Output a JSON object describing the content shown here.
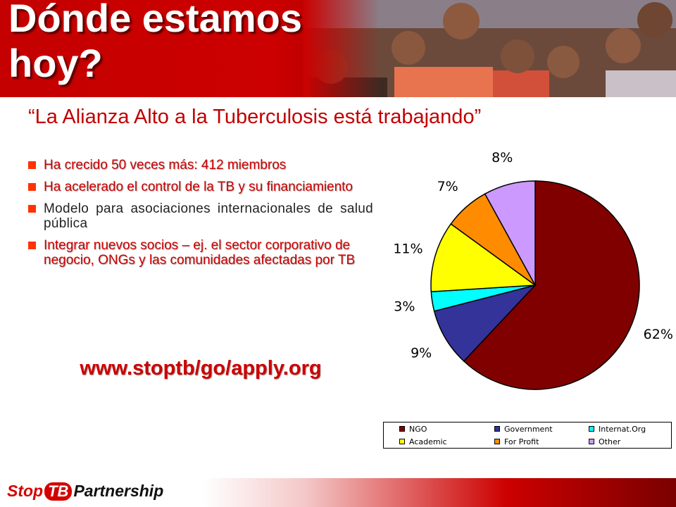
{
  "slide": {
    "title": "Dónde estamos hoy?",
    "subtitle": "“La Alianza Alto a la Tuberculosis está trabajando”",
    "bullets": [
      {
        "text": "Ha crecido 50 veces más: 412 miembros",
        "style": "red"
      },
      {
        "text": "Ha acelerado el control de la TB y su financiamiento",
        "style": "red"
      },
      {
        "text": "Modelo para asociaciones internacionales de salud pública",
        "style": "black"
      },
      {
        "text": "Integrar nuevos socios – ej. el sector corporativo de negocio, ONGs y las comunidades afectadas por TB",
        "style": "red"
      }
    ],
    "url": "www.stoptb/go/apply.org"
  },
  "logo": {
    "stop": "Stop",
    "tb": "TB",
    "partnership": "Partnership"
  },
  "colors": {
    "accent_red": "#cc0000",
    "bullet_square": "#ff3300"
  },
  "chart_data": {
    "type": "pie",
    "start": "12 o'clock, clockwise",
    "legend_position": "bottom",
    "slices": [
      {
        "name": "NGO",
        "value": 62,
        "label": "62%",
        "color": "#800000"
      },
      {
        "name": "Government",
        "value": 9,
        "label": "9%",
        "color": "#333399"
      },
      {
        "name": "Internat.Org",
        "value": 3,
        "label": "3%",
        "color": "#00ffff"
      },
      {
        "name": "Academic",
        "value": 11,
        "label": "11%",
        "color": "#ffff00"
      },
      {
        "name": "For Profit",
        "value": 7,
        "label": "7%",
        "color": "#ff8c00"
      },
      {
        "name": "Other",
        "value": 8,
        "label": "8%",
        "color": "#cc99ff"
      }
    ]
  }
}
